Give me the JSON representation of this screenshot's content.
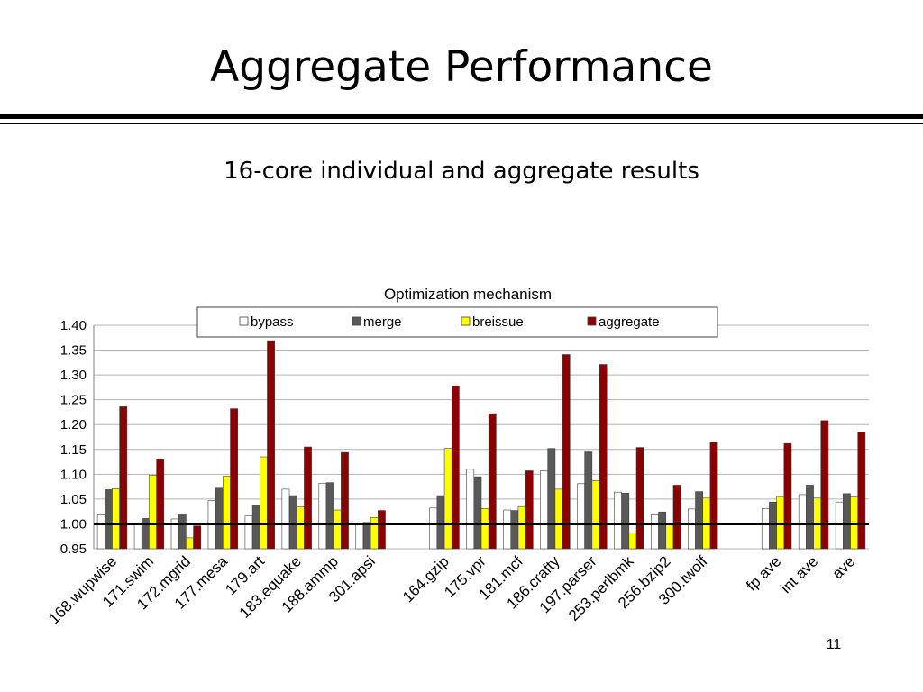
{
  "slide": {
    "title": "Aggregate Performance",
    "subtitle": "16-core individual and aggregate results",
    "page_number": "11"
  },
  "chart_data": {
    "type": "bar",
    "title": "Optimization mechanism",
    "xlabel": "",
    "ylabel": "",
    "ylim": [
      0.95,
      1.4
    ],
    "yticks": [
      "0.95",
      "1.00",
      "1.05",
      "1.10",
      "1.15",
      "1.20",
      "1.25",
      "1.30",
      "1.35",
      "1.40"
    ],
    "grid": true,
    "legend_position": "top-center",
    "baseline": 1.0,
    "categories": [
      "168.wupwise",
      "171.swim",
      "172.mgrid",
      "177.mesa",
      "179.art",
      "183.equake",
      "188.ammp",
      "301.apsi",
      "164.gzip",
      "175.vpr",
      "181.mcf",
      "186.crafty",
      "197.parser",
      "253.perlbmk",
      "256.bzip2",
      "300.twolf",
      "fp ave",
      "int ave",
      "ave"
    ],
    "category_groups": [
      8,
      8,
      3
    ],
    "series": [
      {
        "name": "bypass",
        "color": "#ffffff",
        "values": [
          1.018,
          1.0,
          1.01,
          1.047,
          1.016,
          1.07,
          1.082,
          1.0,
          1.032,
          1.11,
          1.028,
          1.107,
          1.081,
          1.064,
          1.018,
          1.03,
          1.031,
          1.059,
          1.044
        ]
      },
      {
        "name": "merge",
        "color": "#595959",
        "values": [
          1.069,
          1.011,
          1.02,
          1.072,
          1.038,
          1.057,
          1.083,
          1.003,
          1.057,
          1.095,
          1.027,
          1.152,
          1.145,
          1.062,
          1.024,
          1.065,
          1.044,
          1.078,
          1.061
        ]
      },
      {
        "name": "breissue",
        "color": "#ffff00",
        "values": [
          1.071,
          1.098,
          0.972,
          1.096,
          1.135,
          1.034,
          1.028,
          1.013,
          1.152,
          1.031,
          1.035,
          1.07,
          1.087,
          0.982,
          0.998,
          1.052,
          1.055,
          1.052,
          1.054
        ]
      },
      {
        "name": "aggregate",
        "color": "#8b0000",
        "values": [
          1.236,
          1.131,
          0.996,
          1.232,
          1.369,
          1.155,
          1.144,
          1.027,
          1.278,
          1.222,
          1.107,
          1.341,
          1.321,
          1.154,
          1.078,
          1.164,
          1.162,
          1.208,
          1.185
        ]
      }
    ]
  }
}
